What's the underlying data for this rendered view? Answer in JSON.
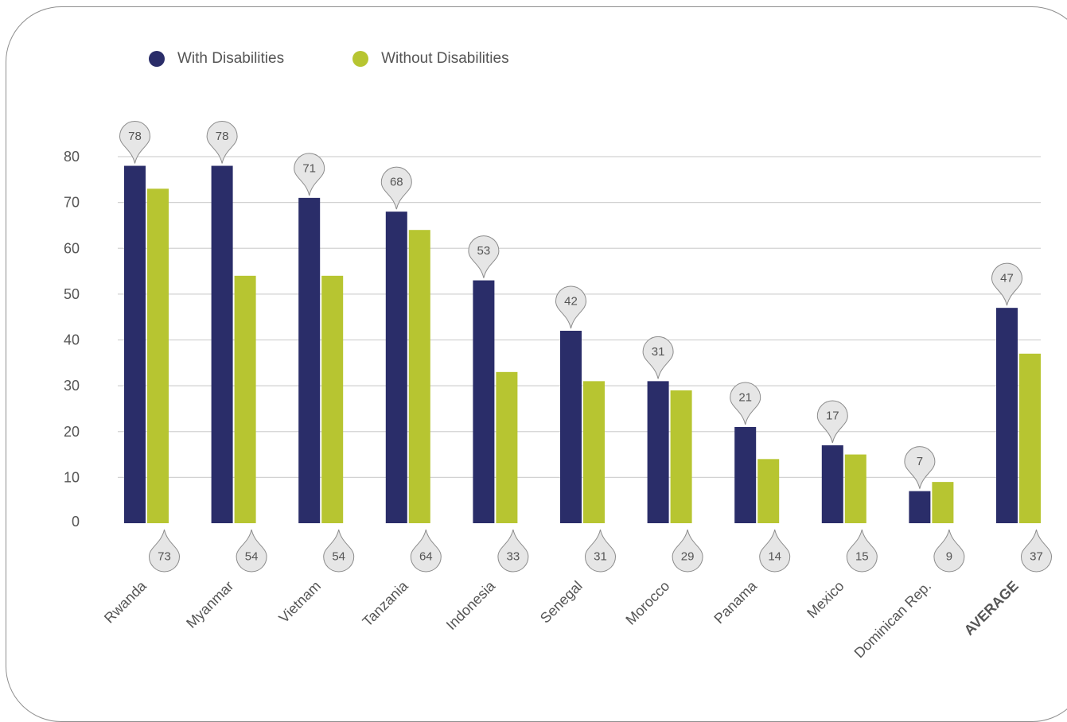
{
  "colors": {
    "with_disabilities": "#2a2d69",
    "without_disabilities": "#b7c531",
    "grid": "#d2d2d2",
    "text": "#555555",
    "bubble_fill": "#e6e6e6",
    "bubble_stroke": "#8c8c8c"
  },
  "chart_data": {
    "type": "bar",
    "categories": [
      "Rwanda",
      "Myanmar",
      "Vietnam",
      "Tanzania",
      "Indonesia",
      "Senegal",
      "Morocco",
      "Panama",
      "Mexico",
      "Dominican Rep.",
      "AVERAGE"
    ],
    "series": [
      {
        "name": "With Disabilities",
        "values": [
          78,
          78,
          71,
          68,
          53,
          42,
          31,
          21,
          17,
          7,
          47
        ]
      },
      {
        "name": "Without Disabilities",
        "values": [
          73,
          54,
          54,
          64,
          33,
          31,
          29,
          14,
          15,
          9,
          37
        ]
      }
    ],
    "yticks": [
      0,
      10,
      20,
      30,
      40,
      50,
      60,
      70,
      80
    ],
    "ylim": [
      0,
      80
    ],
    "grid": true,
    "legend_position": "top-left",
    "bold_category": "AVERAGE"
  }
}
